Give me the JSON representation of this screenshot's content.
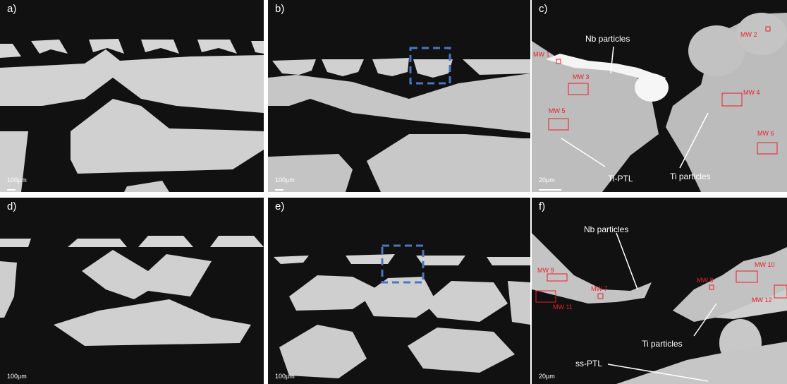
{
  "panels": {
    "a": {
      "label": "a)",
      "scale": "100µm"
    },
    "b": {
      "label": "b)",
      "scale": "100µm"
    },
    "c": {
      "label": "c)",
      "scale": "20µm"
    },
    "d": {
      "label": "d)",
      "scale": "100µm"
    },
    "e": {
      "label": "e)",
      "scale": "100µm"
    },
    "f": {
      "label": "f)",
      "scale": "20µm"
    }
  },
  "annotations_c": {
    "nb": "Nb particles",
    "ti": "Ti particles",
    "ptl": "Ti-PTL",
    "mw1": "MW 1",
    "mw2": "MW 2",
    "mw3": "MW 3",
    "mw4": "MW 4",
    "mw5": "MW 5",
    "mw6": "MW 6"
  },
  "annotations_f": {
    "nb": "Nb particles",
    "ti": "Ti particles",
    "ptl": "ss-PTL",
    "mw7": "MW 7",
    "mw8": "MW 8",
    "mw9": "MW 9",
    "mw10": "MW 10",
    "mw11": "MW 11",
    "mw12": "MW 12"
  },
  "colors": {
    "background": "#111111",
    "fiber": "#d4d4d4",
    "marker": "#e8202a",
    "zoom_box": "#4a74c4"
  }
}
